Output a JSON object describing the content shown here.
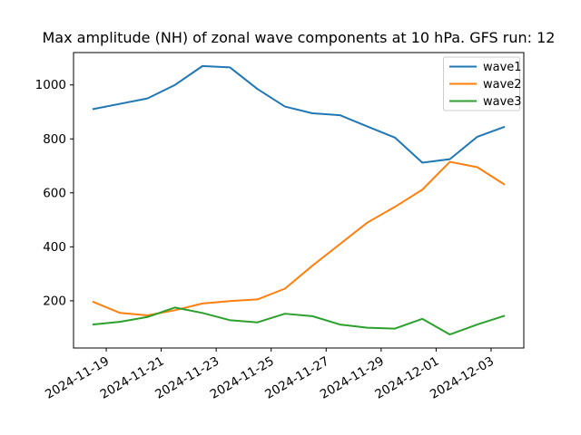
{
  "chart_data": {
    "type": "line",
    "title": "Max amplitude (NH) of zonal wave components at 10 hPa. GFS run: 12",
    "x": [
      0,
      1,
      2,
      3,
      4,
      5,
      6,
      7,
      8,
      9,
      10,
      11,
      12,
      13,
      14,
      15
    ],
    "series": [
      {
        "name": "wave1",
        "color": "#1f77b4",
        "values": [
          910,
          930,
          950,
          1000,
          1070,
          1065,
          985,
          920,
          895,
          888,
          846,
          805,
          712,
          725,
          808,
          845
        ]
      },
      {
        "name": "wave2",
        "color": "#ff7f0e",
        "values": [
          197,
          155,
          146,
          165,
          190,
          199,
          205,
          245,
          330,
          410,
          490,
          548,
          612,
          715,
          695,
          630
        ]
      },
      {
        "name": "wave3",
        "color": "#2ca02c",
        "values": [
          112,
          122,
          140,
          175,
          155,
          128,
          120,
          152,
          143,
          112,
          100,
          97,
          133,
          75,
          112,
          145
        ]
      }
    ],
    "xtick_positions": [
      0.5,
      2.5,
      4.5,
      6.5,
      8.5,
      10.5,
      12.5,
      14.5
    ],
    "xtick_labels": [
      "2024-11-19",
      "2024-11-21",
      "2024-11-23",
      "2024-11-25",
      "2024-11-27",
      "2024-11-29",
      "2024-12-01",
      "2024-12-03"
    ],
    "yticks": [
      200,
      400,
      600,
      800,
      1000
    ],
    "xlim": [
      -0.69,
      15.69
    ],
    "ylim": [
      25,
      1120
    ],
    "xlabel": "",
    "ylabel": "",
    "grid": false,
    "legend_position": "upper right",
    "legend_entries": [
      "wave1",
      "wave2",
      "wave3"
    ],
    "frame_color": "#000000",
    "background_color": "#ffffff",
    "legend_border_color": "#cccccc"
  }
}
